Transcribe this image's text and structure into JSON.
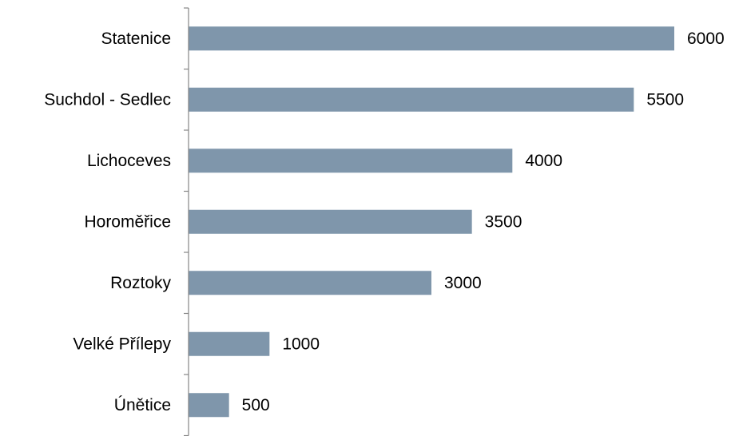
{
  "chart_data": {
    "type": "bar",
    "orientation": "horizontal",
    "categories": [
      "Statenice",
      "Suchdol - Sedlec",
      "Lichoceves",
      "Horoměřice",
      "Roztoky",
      "Velké Přílepy",
      "Únětice"
    ],
    "values": [
      6000,
      5500,
      4000,
      3500,
      3000,
      1000,
      500
    ],
    "value_labels": [
      "6000",
      "5500",
      "4000",
      "3500",
      "3000",
      "1000",
      "500"
    ],
    "xlim": [
      0,
      6000
    ],
    "bar_color": "#7f96ab",
    "axis_color": "#868686",
    "title": "",
    "xlabel": "",
    "ylabel": "",
    "grid": false,
    "legend": "none"
  }
}
